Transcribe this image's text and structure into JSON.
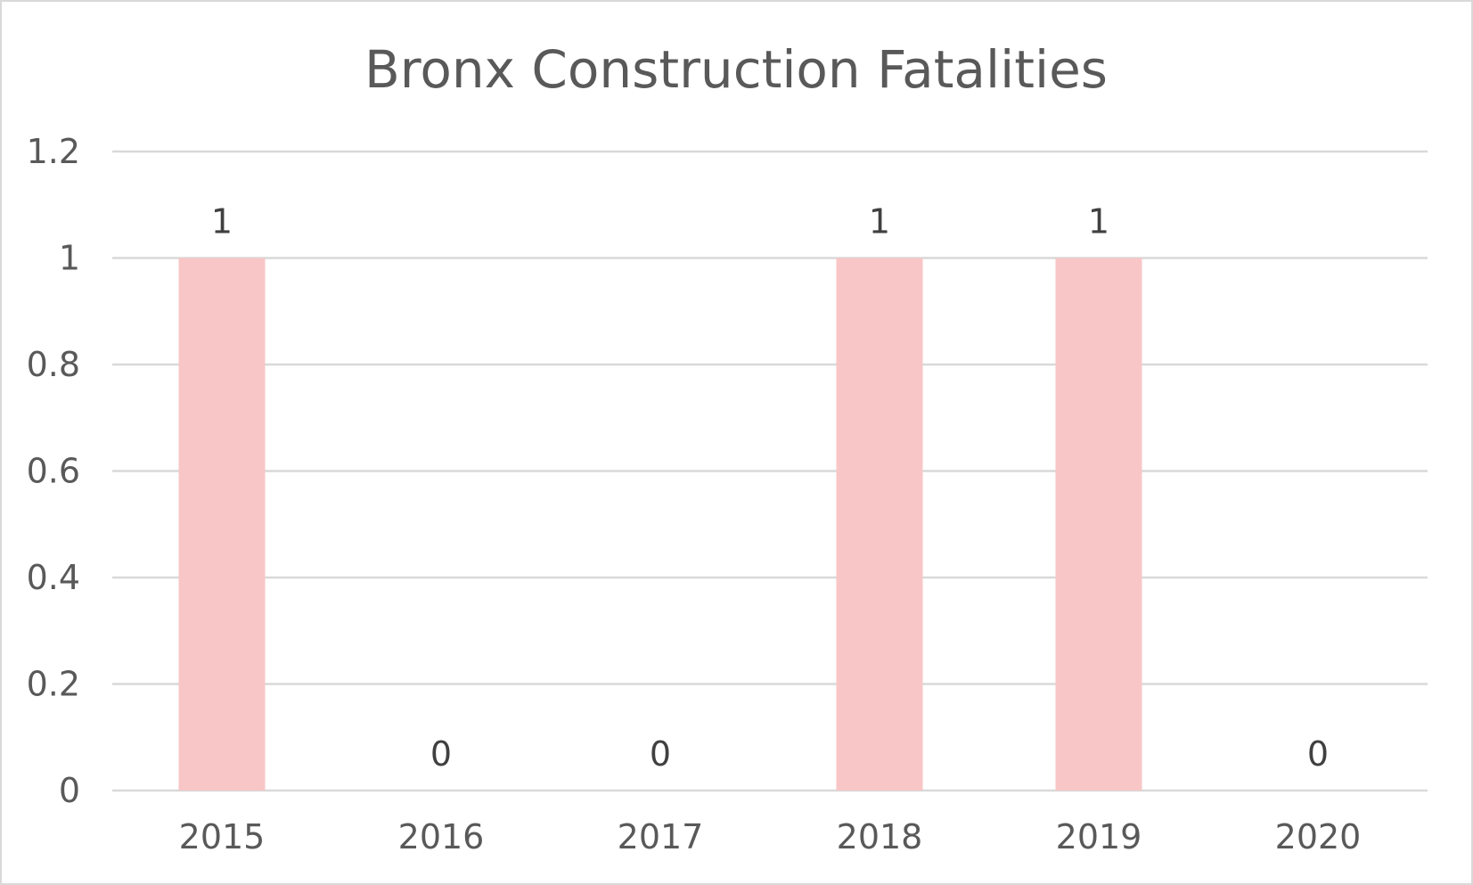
{
  "chart_data": {
    "type": "bar",
    "title": "Bronx Construction Fatalities",
    "categories": [
      "2015",
      "2016",
      "2017",
      "2018",
      "2019",
      "2020"
    ],
    "values": [
      1,
      0,
      0,
      1,
      1,
      0
    ],
    "data_labels": [
      "1",
      "0",
      "0",
      "1",
      "1",
      "0"
    ],
    "y_ticks": [
      "0",
      "0.2",
      "0.4",
      "0.6",
      "0.8",
      "1",
      "1.2"
    ],
    "ylim": [
      0,
      1.2
    ],
    "xlabel": "",
    "ylabel": "",
    "grid": true,
    "legend": "none",
    "bar_color": "#f8c6c6"
  }
}
